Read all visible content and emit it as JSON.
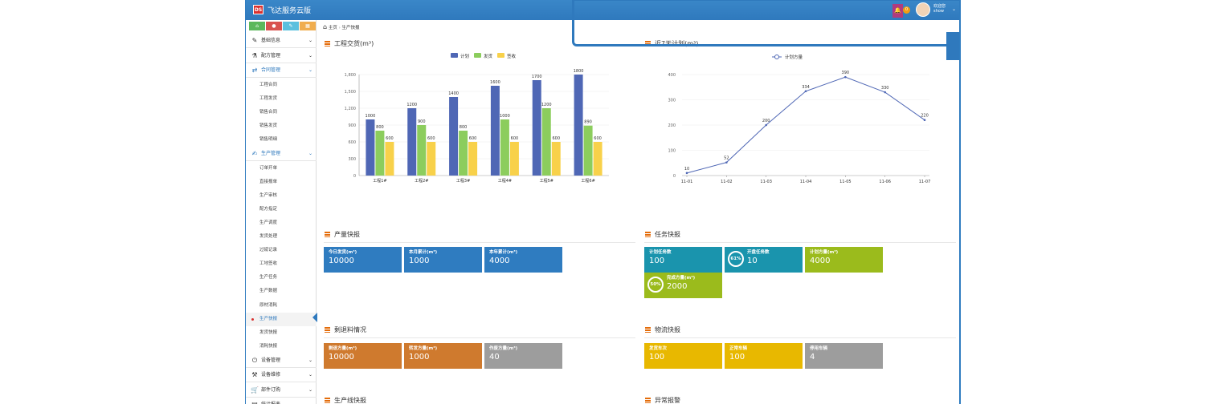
{
  "app": {
    "logo": "DS",
    "title": "飞达服务云版",
    "notification_count": "0",
    "user_line1": "欢迎您",
    "user_line2": "show"
  },
  "colors": {
    "topbar": "#2f79bd",
    "quick": [
      "#5cb85c",
      "#d9534f",
      "#5bc0de",
      "#f0ad4e"
    ]
  },
  "quick_icons": [
    "home-icon",
    "circle-icon",
    "pencil-icon",
    "grid-icon"
  ],
  "quick_glyphs": [
    "⌂",
    "●",
    "✎",
    "▦"
  ],
  "menu": [
    {
      "label": "基础信息",
      "icon": "✎",
      "icon_name": "edit-icon"
    },
    {
      "label": "配方管理",
      "icon": "⚗",
      "icon_name": "flask-icon"
    },
    {
      "label": "合同管理",
      "icon": "⇄",
      "icon_name": "exchange-icon",
      "open": true,
      "children": [
        "工程合同",
        "工程发货",
        "销售合同",
        "销售发货",
        "销售明细"
      ]
    },
    {
      "label": "生产管理",
      "icon": "✍",
      "icon_name": "pen-icon",
      "open": true,
      "children": [
        "订单开单",
        "直接报单",
        "生产审核",
        "配方指定",
        "生产调度",
        "发货处理",
        "过磅记录",
        "工地签收",
        "生产任务",
        "生产数据",
        "原材消耗",
        "生产快报",
        "发货快报",
        "消耗快报"
      ]
    },
    {
      "label": "设备管理",
      "icon": "⏻",
      "icon_name": "power-icon"
    },
    {
      "label": "设备维修",
      "icon": "⚒",
      "icon_name": "wrench-icon"
    },
    {
      "label": "部件订购",
      "icon": "🛒",
      "icon_name": "cart-icon"
    },
    {
      "label": "统计报表",
      "icon": "▤",
      "icon_name": "report-icon"
    }
  ],
  "active_submenu": "生产快报",
  "breadcrumb": {
    "home": "主页",
    "current": "生产快报"
  },
  "panels": {
    "engineering": "工程交货(m³)",
    "tasks_chart": "近7天计划(m³)",
    "output": "产量快报",
    "tasks": "任务快报",
    "leftover": "剩退料情况",
    "logistics": "物流快报",
    "line": "生产线快报",
    "alarm": "异常报警"
  },
  "output_tiles": [
    {
      "title": "今日发货(m³)",
      "value": "10000",
      "color": "#2f7cc0"
    },
    {
      "title": "本月累计(m³)",
      "value": "1000",
      "color": "#2f7cc0"
    },
    {
      "title": "本年累计(m³)",
      "value": "4000",
      "color": "#2f7cc0"
    }
  ],
  "task_tiles": [
    {
      "title": "计划任务数",
      "value": "100",
      "color": "#1a94ad"
    },
    {
      "title": "开盘任务数",
      "value": "10",
      "color": "#1a94ad",
      "ring": "61%"
    },
    {
      "title": "计划方量(m³)",
      "value": "4000",
      "color": "#9bbb1c"
    },
    {
      "title": "完成方量(m³)",
      "value": "2000",
      "color": "#9bbb1c",
      "ring": "50%"
    }
  ],
  "leftover_tiles": [
    {
      "title": "剩退方量(m³)",
      "value": "10000",
      "color": "#cf7a2e"
    },
    {
      "title": "转发方量(m³)",
      "value": "1000",
      "color": "#cf7a2e"
    },
    {
      "title": "作废方量(m³)",
      "value": "40",
      "color": "#9d9d9d"
    }
  ],
  "logistics_tiles": [
    {
      "title": "发货车次",
      "value": "100",
      "color": "#e8b800"
    },
    {
      "title": "正常车辆",
      "value": "100",
      "color": "#e8b800"
    },
    {
      "title": "停用车辆",
      "value": "4",
      "color": "#9d9d9d"
    }
  ],
  "chart_data": [
    {
      "type": "bar",
      "title": "工程交货(m³)",
      "categories": [
        "工程1#",
        "工程2#",
        "工程3#",
        "工程4#",
        "工程5#",
        "工程6#"
      ],
      "series": [
        {
          "name": "计划",
          "color": "#4f67b5",
          "values": [
            1000,
            1200,
            1400,
            1600,
            1700,
            1800
          ]
        },
        {
          "name": "发货",
          "color": "#8ccd5d",
          "values": [
            800,
            900,
            800,
            1000,
            1200,
            890
          ]
        },
        {
          "name": "签收",
          "color": "#f8d14a",
          "values": [
            600,
            600,
            600,
            600,
            600,
            600
          ]
        }
      ],
      "ylim": [
        0,
        1800
      ],
      "yticks": [
        "0",
        "300",
        "600",
        "900",
        "1,200",
        "1,500",
        "1,800"
      ]
    },
    {
      "type": "line",
      "title": "近7天计划(m³)",
      "x": [
        "11-01",
        "11-02",
        "11-03",
        "11-04",
        "11-05",
        "11-06",
        "11-07"
      ],
      "series": [
        {
          "name": "计划方量",
          "color": "#4f67b5",
          "values": [
            10,
            52,
            200,
            334,
            390,
            330,
            220
          ]
        }
      ],
      "ylim": [
        0,
        400
      ],
      "yticks": [
        "0",
        "100",
        "200",
        "300",
        "400"
      ]
    }
  ]
}
